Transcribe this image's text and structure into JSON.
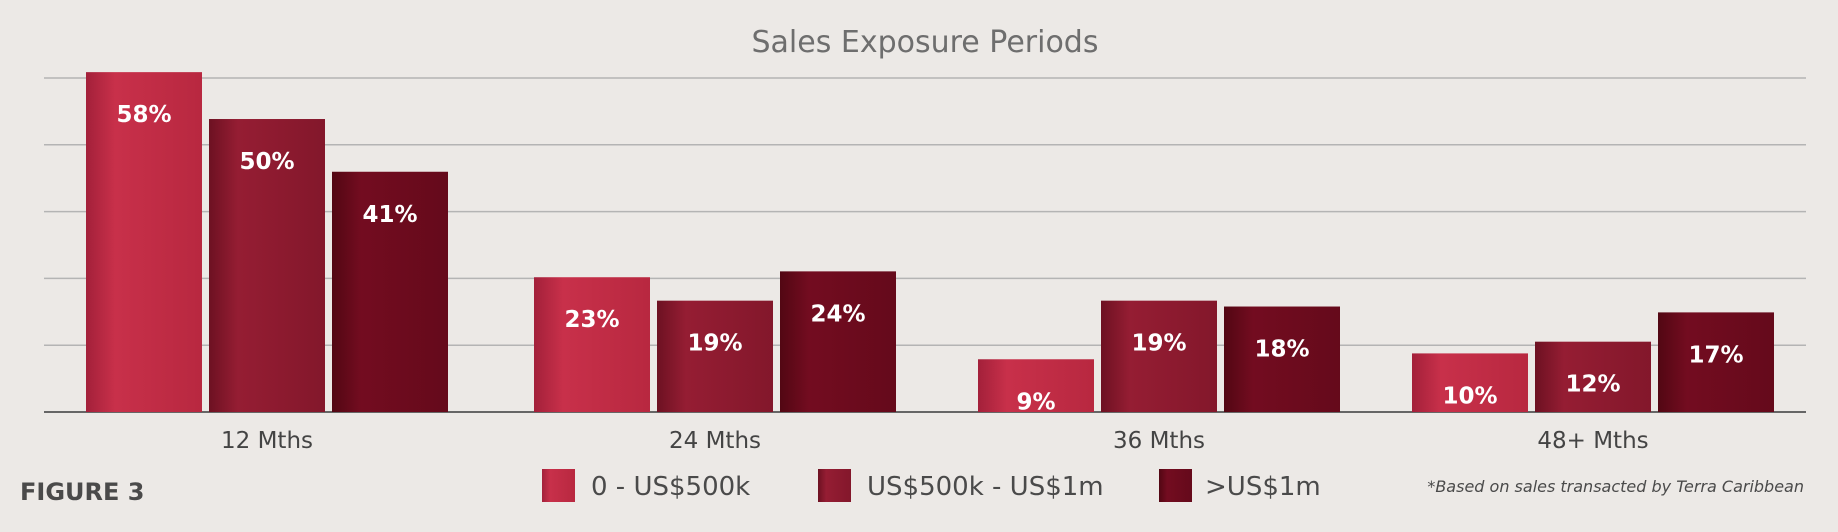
{
  "figure_label": "FIGURE 3",
  "footnote": "*Based on sales transacted by Terra Caribbean",
  "colors": {
    "background": "#ece9e6",
    "grid": "#b4b4b4",
    "axis": "#666666",
    "series": [
      "#c12a42",
      "#8d1a2e",
      "#6b0a1c"
    ]
  },
  "chart_data": {
    "type": "bar",
    "title": "Sales Exposure Periods",
    "categories": [
      "12 Mths",
      "24 Mths",
      "36 Mths",
      "48+ Mths"
    ],
    "series": [
      {
        "name": "0 - US$500k",
        "values": [
          58,
          23,
          9,
          10
        ],
        "labels": [
          "58%",
          "23%",
          "9%",
          "10%"
        ]
      },
      {
        "name": "US$500k - US$1m",
        "values": [
          50,
          19,
          19,
          12
        ],
        "labels": [
          "50%",
          "19%",
          "19%",
          "12%"
        ]
      },
      {
        "name": ">US$1m",
        "values": [
          41,
          24,
          18,
          17
        ],
        "labels": [
          "41%",
          "24%",
          "18%",
          "17%"
        ]
      }
    ],
    "ylim": [
      0,
      60
    ],
    "grid": true,
    "legend": "bottom-center"
  }
}
